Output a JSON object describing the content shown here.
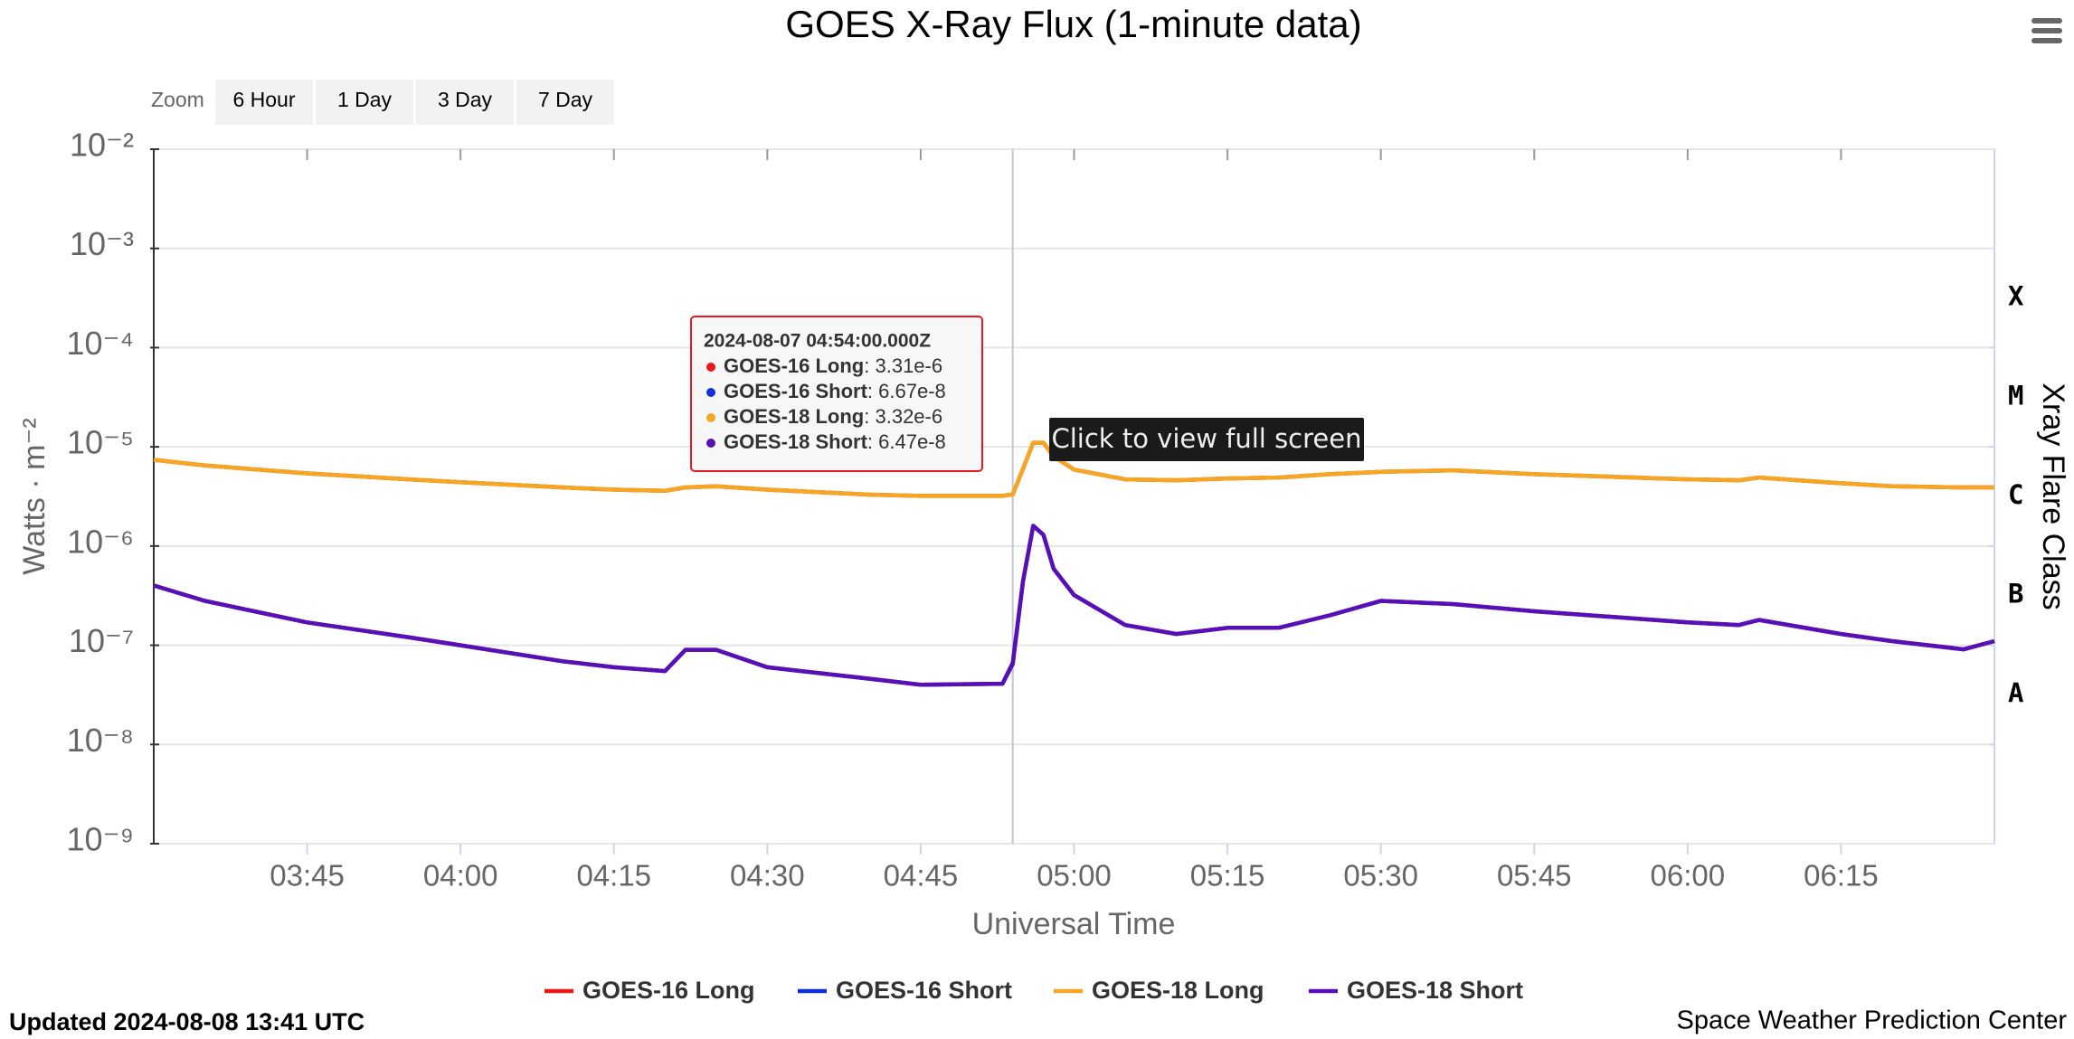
{
  "chart_data": {
    "type": "line",
    "title": "GOES X-Ray Flux (1-minute data)",
    "zoom": {
      "label": "Zoom",
      "buttons": [
        "6 Hour",
        "1 Day",
        "3 Day",
        "7 Day"
      ]
    },
    "x_label": "Universal Time",
    "y_label": "Watts · m⁻²",
    "y2_label": "Xray Flare Class",
    "x": [
      "03:30",
      "03:35",
      "03:45",
      "03:55",
      "04:00",
      "04:10",
      "04:15",
      "04:20",
      "04:22",
      "04:25",
      "04:30",
      "04:40",
      "04:45",
      "04:53",
      "04:54",
      "04:55",
      "04:56",
      "04:57",
      "04:58",
      "05:00",
      "05:05",
      "05:10",
      "05:15",
      "05:20",
      "05:25",
      "05:30",
      "05:37",
      "05:45",
      "06:00",
      "06:05",
      "06:07",
      "06:15",
      "06:20",
      "06:27",
      "06:30"
    ],
    "xlim": [
      "03:30",
      "06:30"
    ],
    "xticks": [
      "03:45",
      "04:00",
      "04:15",
      "04:30",
      "04:45",
      "05:00",
      "05:15",
      "05:30",
      "05:45",
      "06:00",
      "06:15"
    ],
    "ylim": [
      1e-09,
      0.01
    ],
    "log_y": true,
    "grid": true,
    "yticks": [
      {
        "value": 1e-09,
        "label": "10⁻⁹"
      },
      {
        "value": 1e-08,
        "label": "10⁻⁸"
      },
      {
        "value": 1e-07,
        "label": "10⁻⁷"
      },
      {
        "value": 1e-06,
        "label": "10⁻⁶"
      },
      {
        "value": 1e-05,
        "label": "10⁻⁵"
      },
      {
        "value": 0.0001,
        "label": "10⁻⁴"
      },
      {
        "value": 0.001,
        "label": "10⁻³"
      },
      {
        "value": 0.01,
        "label": "10⁻²"
      }
    ],
    "y2ticks": [
      {
        "value": 1e-08,
        "label": "A"
      },
      {
        "value": 1e-07,
        "label": "B"
      },
      {
        "value": 1e-06,
        "label": "C"
      },
      {
        "value": 1e-05,
        "label": "M"
      },
      {
        "value": 0.0001,
        "label": "X"
      }
    ],
    "series": [
      {
        "name": "GOES-16 Long",
        "color": "#e8171a",
        "values": [
          7.4e-06,
          6.5e-06,
          5.4e-06,
          4.7e-06,
          4.4e-06,
          3.9e-06,
          3.7e-06,
          3.6e-06,
          3.9e-06,
          4e-06,
          3.7e-06,
          3.3e-06,
          3.2e-06,
          3.2e-06,
          3.31e-06,
          6e-06,
          1.1e-05,
          1.1e-05,
          8e-06,
          5.9e-06,
          4.7e-06,
          4.6e-06,
          4.8e-06,
          4.9e-06,
          5.3e-06,
          5.6e-06,
          5.8e-06,
          5.3e-06,
          4.7e-06,
          4.6e-06,
          4.9e-06,
          4.3e-06,
          4e-06,
          3.9e-06,
          3.9e-06
        ]
      },
      {
        "name": "GOES-16 Short",
        "color": "#1230d8",
        "values": [
          4e-07,
          2.8e-07,
          1.7e-07,
          1.2e-07,
          1e-07,
          6.9e-08,
          6e-08,
          5.5e-08,
          9e-08,
          9e-08,
          6e-08,
          4.6e-08,
          4e-08,
          4.1e-08,
          6.67e-08,
          4.4e-07,
          1.6e-06,
          1.3e-06,
          5.9e-07,
          3.2e-07,
          1.6e-07,
          1.3e-07,
          1.5e-07,
          1.5e-07,
          2e-07,
          2.8e-07,
          2.6e-07,
          2.2e-07,
          1.7e-07,
          1.6e-07,
          1.8e-07,
          1.3e-07,
          1.1e-07,
          9.1e-08,
          1.1e-07
        ]
      },
      {
        "name": "GOES-18 Long",
        "color": "#f5a623",
        "values": [
          7.4e-06,
          6.5e-06,
          5.4e-06,
          4.7e-06,
          4.4e-06,
          3.9e-06,
          3.7e-06,
          3.6e-06,
          3.9e-06,
          4e-06,
          3.7e-06,
          3.3e-06,
          3.2e-06,
          3.2e-06,
          3.32e-06,
          6e-06,
          1.1e-05,
          1.1e-05,
          8e-06,
          5.9e-06,
          4.7e-06,
          4.6e-06,
          4.8e-06,
          4.9e-06,
          5.3e-06,
          5.6e-06,
          5.8e-06,
          5.3e-06,
          4.7e-06,
          4.6e-06,
          4.9e-06,
          4.3e-06,
          4e-06,
          3.9e-06,
          3.9e-06
        ]
      },
      {
        "name": "GOES-18 Short",
        "color": "#5a0fb4",
        "values": [
          4e-07,
          2.8e-07,
          1.7e-07,
          1.2e-07,
          1e-07,
          6.9e-08,
          6e-08,
          5.5e-08,
          9e-08,
          9e-08,
          6e-08,
          4.6e-08,
          4e-08,
          4.1e-08,
          6.47e-08,
          4.4e-07,
          1.6e-06,
          1.3e-06,
          5.9e-07,
          3.2e-07,
          1.6e-07,
          1.3e-07,
          1.5e-07,
          1.5e-07,
          2e-07,
          2.8e-07,
          2.6e-07,
          2.2e-07,
          1.7e-07,
          1.6e-07,
          1.8e-07,
          1.3e-07,
          1.1e-07,
          9.1e-08,
          1.1e-07
        ]
      }
    ],
    "tooltip": {
      "title": "2024-08-07 04:54:00.000Z",
      "items": [
        {
          "name": "GOES-16 Long",
          "value": "3.31e-6"
        },
        {
          "name": "GOES-16 Short",
          "value": "6.67e-8"
        },
        {
          "name": "GOES-18 Long",
          "value": "3.32e-6"
        },
        {
          "name": "GOES-18 Short",
          "value": "6.47e-8"
        }
      ]
    },
    "hint": "Click to view full screen",
    "updated": "Updated 2024-08-08 13:41 UTC",
    "credit": "Space Weather Prediction Center"
  }
}
